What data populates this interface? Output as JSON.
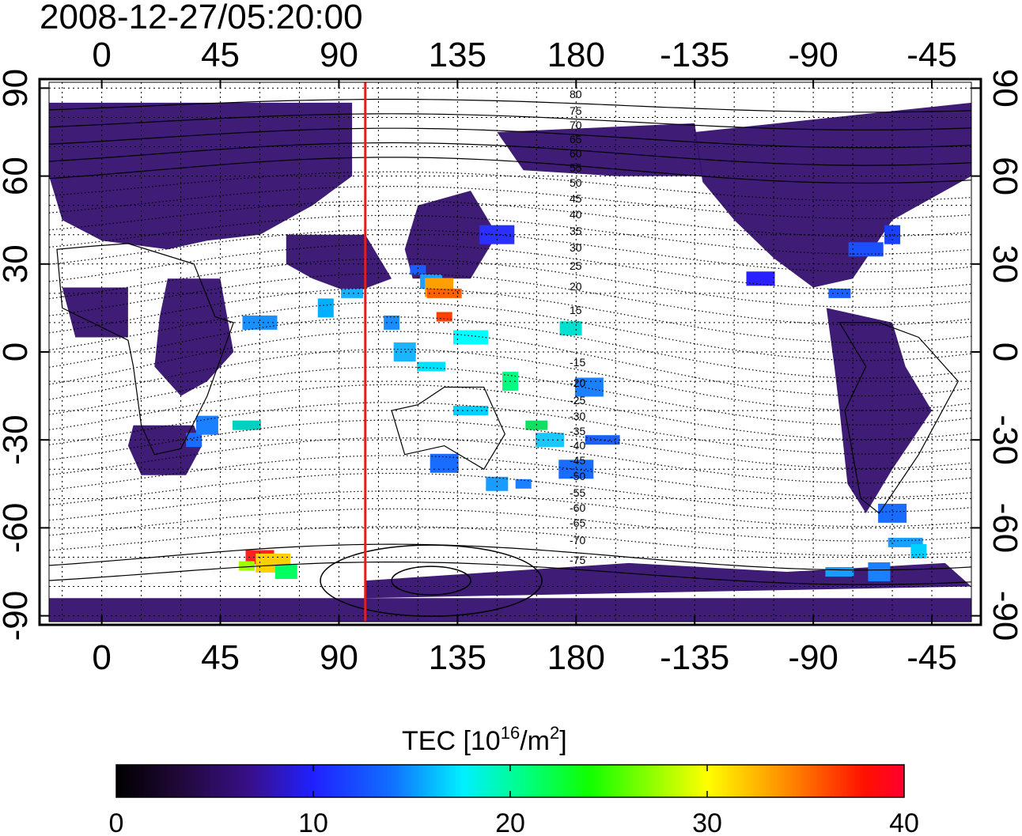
{
  "map": {
    "timestamp": "2008-12-27/05:20:00",
    "lon_ticks_top": [
      "0",
      "45",
      "90",
      "135",
      "180",
      "-135",
      "-90",
      "-45"
    ],
    "lon_ticks_bottom": [
      "0",
      "45",
      "90",
      "135",
      "180",
      "-135",
      "-90",
      "-45"
    ],
    "lat_ticks_left": [
      "90",
      "60",
      "30",
      "0",
      "-30",
      "-60",
      "-90"
    ],
    "lat_ticks_right": [
      "90",
      "60",
      "30",
      "0",
      "-30",
      "-60",
      "-90"
    ],
    "lon_values": [
      0,
      45,
      90,
      135,
      180,
      225,
      270,
      315
    ],
    "lat_values": [
      90,
      60,
      30,
      0,
      -30,
      -60,
      -90
    ],
    "lon_range": [
      -20,
      330
    ],
    "lat_range": [
      -92,
      92
    ],
    "meridian_marker_lon": 100,
    "meridian_marker_color": "#e02020",
    "contour_labels_north": [
      "80",
      "75",
      "70",
      "65",
      "60",
      "55",
      "50",
      "45",
      "40",
      "35",
      "30",
      "25",
      "20",
      "15"
    ],
    "contour_labels_south": [
      "-15",
      "-20",
      "-25",
      "-30",
      "-35",
      "-40",
      "-45",
      "-50",
      "-55",
      "-60",
      "-65",
      "-70",
      "-75"
    ],
    "land_color": "#35106e",
    "background_color": "#ffffff"
  },
  "colorbar": {
    "title_prefix": "TEC  [10",
    "title_sup1": "16",
    "title_mid": "/m",
    "title_sup2": "2",
    "title_suffix": "]",
    "tick_labels": [
      "0",
      "10",
      "20",
      "30",
      "40"
    ],
    "tick_values": [
      0,
      10,
      20,
      30,
      40
    ],
    "range": [
      0,
      40
    ],
    "colors": [
      "#000000",
      "#2a0a4a",
      "#3a12a0",
      "#1a1aff",
      "#1a7aff",
      "#00ffff",
      "#00ff40",
      "#a0ff00",
      "#ffff00",
      "#ff8000",
      "#ff0000",
      "#ff0020"
    ]
  }
}
